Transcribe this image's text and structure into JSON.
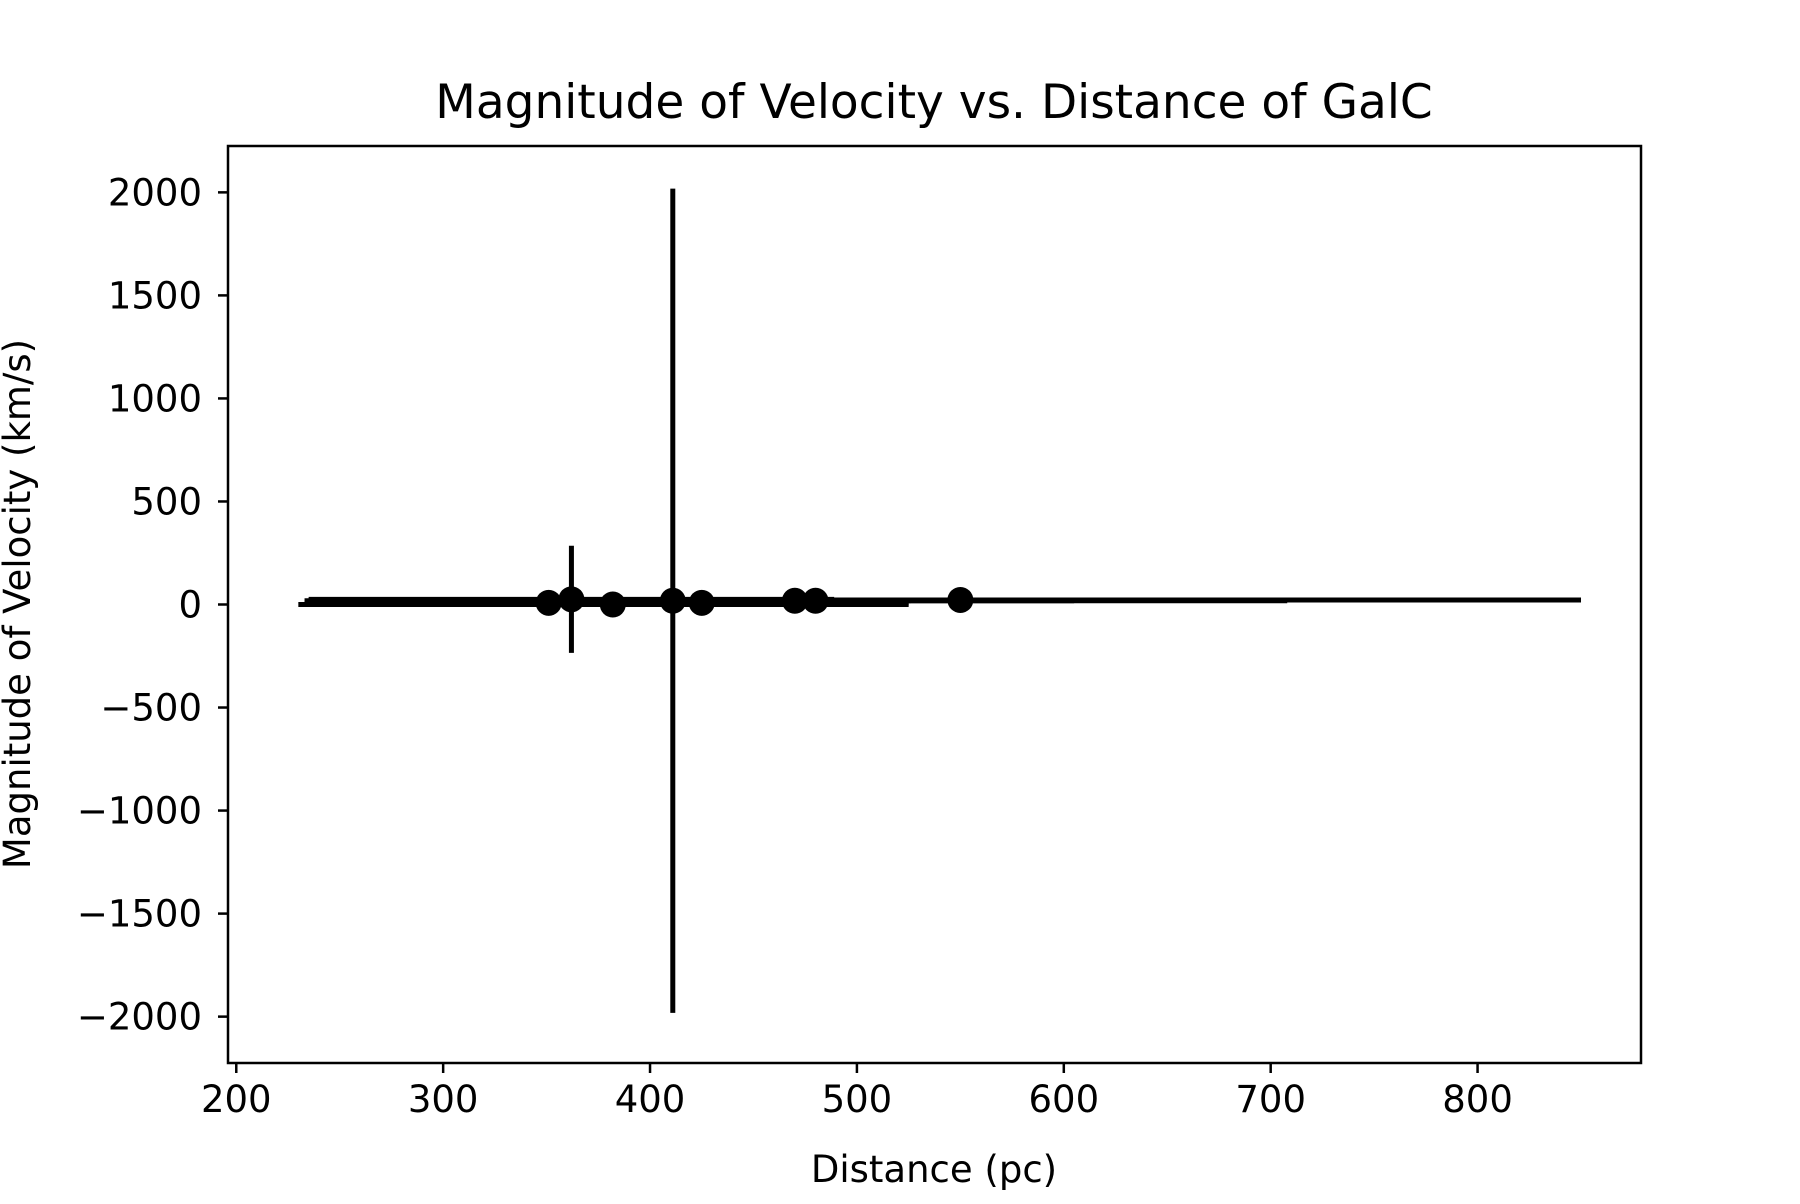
{
  "chart_data": {
    "type": "scatter",
    "title": "Magnitude of Velocity vs. Distance of GalC",
    "xlabel": "Distance (pc)",
    "ylabel": "Magnitude of Velocity (km/s)",
    "xlim": [
      196,
      879
    ],
    "ylim": [
      -2225,
      2225
    ],
    "x_ticks": [
      200,
      300,
      400,
      500,
      600,
      700,
      800
    ],
    "x_tick_labels": [
      "200",
      "300",
      "400",
      "500",
      "600",
      "700",
      "800"
    ],
    "y_ticks": [
      2000,
      1500,
      1000,
      500,
      0,
      -500,
      -1000,
      -1500,
      -2000
    ],
    "y_tick_labels": [
      "2000",
      "1500",
      "1000",
      "500",
      "0",
      "−500",
      "−1000",
      "−1500",
      "−2000"
    ],
    "grid": false,
    "color": "#000000",
    "points": [
      {
        "x": 351,
        "y": 8,
        "xerr_low": 118,
        "xerr_high": 118,
        "yerr": 10
      },
      {
        "x": 362,
        "y": 25,
        "xerr_low": 127,
        "xerr_high": 127,
        "yerr": 260
      },
      {
        "x": 382,
        "y": 0,
        "xerr_low": 152,
        "xerr_high": 143,
        "yerr": 10
      },
      {
        "x": 411,
        "y": 18,
        "xerr_low": 178,
        "xerr_high": 115,
        "yerr": 2000
      },
      {
        "x": 425,
        "y": 8,
        "xerr_low": 190,
        "xerr_high": 100,
        "yerr": 60
      },
      {
        "x": 470,
        "y": 18,
        "xerr_low": 225,
        "xerr_high": 135,
        "yerr": 10
      },
      {
        "x": 480,
        "y": 18,
        "xerr_low": 240,
        "xerr_high": 228,
        "yerr": 10
      },
      {
        "x": 550,
        "y": 22,
        "xerr_low": 315,
        "xerr_high": 300,
        "yerr": 10
      }
    ]
  }
}
